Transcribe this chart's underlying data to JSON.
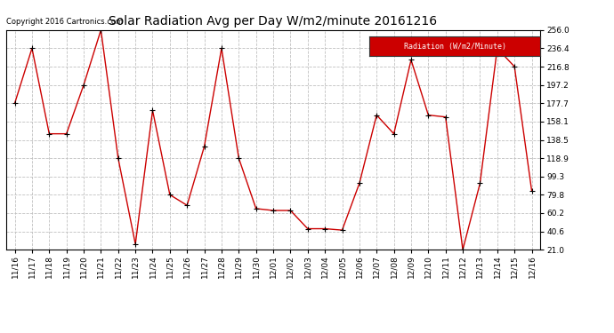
{
  "title": "Solar Radiation Avg per Day W/m2/minute 20161216",
  "copyright_text": "Copyright 2016 Cartronics.com",
  "legend_label": "Radiation (W/m2/Minute)",
  "legend_bg": "#cc0000",
  "legend_text_color": "#ffffff",
  "background_color": "#ffffff",
  "plot_bg_color": "#ffffff",
  "line_color": "#cc0000",
  "marker_color": "#000000",
  "grid_color": "#c0c0c0",
  "labels": [
    "11/16",
    "11/17",
    "11/18",
    "11/19",
    "11/20",
    "11/21",
    "11/22",
    "11/23",
    "11/24",
    "11/25",
    "11/26",
    "11/27",
    "11/28",
    "11/29",
    "11/30",
    "12/01",
    "12/02",
    "12/03",
    "12/04",
    "12/05",
    "12/06",
    "12/07",
    "12/08",
    "12/09",
    "12/10",
    "12/11",
    "12/12",
    "12/13",
    "12/14",
    "12/15",
    "12/16"
  ],
  "values": [
    177.7,
    236.4,
    145.0,
    145.0,
    197.2,
    256.0,
    118.9,
    27.0,
    170.0,
    79.8,
    68.5,
    131.5,
    236.4,
    118.9,
    65.0,
    63.0,
    63.0,
    43.5,
    43.5,
    42.0,
    92.0,
    165.0,
    145.0,
    224.0,
    165.0,
    163.0,
    21.0,
    92.0,
    236.4,
    216.8,
    84.0
  ],
  "yticks": [
    21.0,
    40.6,
    60.2,
    79.8,
    99.3,
    118.9,
    138.5,
    158.1,
    177.7,
    197.2,
    216.8,
    236.4,
    256.0
  ],
  "ylim": [
    21.0,
    256.0
  ],
  "title_fontsize": 10,
  "axis_fontsize": 6.5,
  "copyright_fontsize": 6
}
